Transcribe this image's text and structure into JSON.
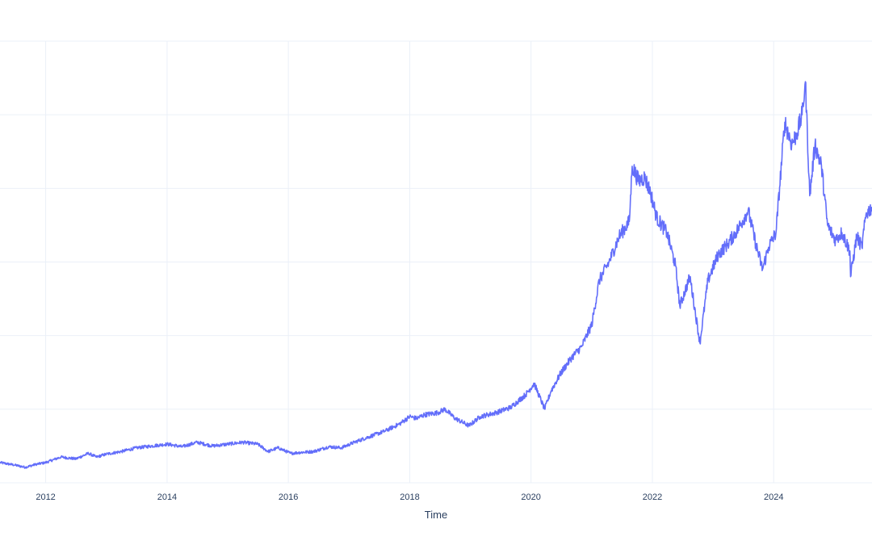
{
  "chart_data": {
    "type": "line",
    "title": "",
    "xlabel": "Time",
    "ylabel": "",
    "x_type": "date",
    "xlim": [
      "2011-04-01",
      "2025-08-15"
    ],
    "ylim": [
      0,
      12
    ],
    "x_ticks": [
      "2012",
      "2014",
      "2016",
      "2018",
      "2020",
      "2022",
      "2024"
    ],
    "grid": true,
    "legend": "none",
    "colors": {
      "line": "#636efa",
      "grid": "#ebf0f8",
      "text": "#2a3f5f",
      "background": "#ffffff"
    },
    "series": [
      {
        "x": [
          "2011-04-01",
          "2011-07-01",
          "2011-09-01",
          "2011-11-01",
          "2012-01-01",
          "2012-04-01",
          "2012-07-01",
          "2012-09-15",
          "2012-11-01",
          "2013-01-01",
          "2013-04-01",
          "2013-07-01",
          "2013-10-01",
          "2014-01-01",
          "2014-04-01",
          "2014-07-01",
          "2014-10-01",
          "2015-01-01",
          "2015-04-01",
          "2015-07-01",
          "2015-09-01",
          "2015-11-01",
          "2016-01-15",
          "2016-03-01",
          "2016-06-01",
          "2016-09-01",
          "2016-11-15",
          "2017-02-01",
          "2017-05-01",
          "2017-08-01",
          "2017-11-01",
          "2018-01-01",
          "2018-02-10",
          "2018-04-01",
          "2018-06-15",
          "2018-08-01",
          "2018-10-01",
          "2018-12-24",
          "2019-03-01",
          "2019-06-01",
          "2019-09-01",
          "2019-12-01",
          "2020-01-20",
          "2020-03-23",
          "2020-05-01",
          "2020-07-01",
          "2020-09-01",
          "2020-11-01",
          "2021-01-01",
          "2021-02-15",
          "2021-04-15",
          "2021-06-15",
          "2021-08-15",
          "2021-09-01",
          "2021-10-10",
          "2021-11-15",
          "2021-12-20",
          "2022-01-27",
          "2022-03-29",
          "2022-05-20",
          "2022-06-15",
          "2022-08-15",
          "2022-10-14",
          "2022-12-01",
          "2023-02-01",
          "2023-04-01",
          "2023-06-01",
          "2023-07-31",
          "2023-09-15",
          "2023-10-26",
          "2023-12-01",
          "2024-01-15",
          "2024-03-08",
          "2024-04-19",
          "2024-05-20",
          "2024-06-20",
          "2024-07-10",
          "2024-08-05",
          "2024-09-06",
          "2024-10-15",
          "2024-11-20",
          "2025-01-07",
          "2025-02-15",
          "2025-04-04",
          "2025-04-08",
          "2025-05-15",
          "2025-06-15",
          "2025-07-10",
          "2025-08-15"
        ],
        "y": [
          0.55,
          0.48,
          0.42,
          0.5,
          0.55,
          0.7,
          0.65,
          0.8,
          0.7,
          0.78,
          0.85,
          0.95,
          1.0,
          1.05,
          0.98,
          1.1,
          1.0,
          1.05,
          1.1,
          1.05,
          0.85,
          0.95,
          0.8,
          0.82,
          0.85,
          0.98,
          0.95,
          1.1,
          1.25,
          1.4,
          1.6,
          1.8,
          1.75,
          1.85,
          1.9,
          2.0,
          1.75,
          1.55,
          1.8,
          1.9,
          2.05,
          2.4,
          2.7,
          2.0,
          2.5,
          3.0,
          3.4,
          3.7,
          4.3,
          5.5,
          6.0,
          6.7,
          7.1,
          8.6,
          8.2,
          8.3,
          7.9,
          7.2,
          6.8,
          5.9,
          4.8,
          5.6,
          3.8,
          5.5,
          6.2,
          6.5,
          6.9,
          7.4,
          6.5,
          5.8,
          6.4,
          6.8,
          9.8,
          9.2,
          9.5,
          10.0,
          10.9,
          7.8,
          9.2,
          8.6,
          7.0,
          6.6,
          6.8,
          6.3,
          5.6,
          6.7,
          6.4,
          7.3,
          7.5
        ]
      }
    ]
  }
}
